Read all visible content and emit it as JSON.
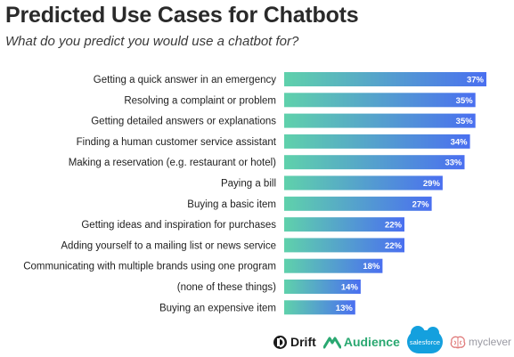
{
  "header": {
    "title": "Predicted Use Cases for Chatbots",
    "subtitle": "What do you predict you would use a chatbot for?"
  },
  "chart_data": {
    "type": "bar",
    "orientation": "horizontal",
    "categories": [
      "Getting a quick answer in an emergency",
      "Resolving a complaint or problem",
      "Getting detailed answers or explanations",
      "Finding a human customer service assistant",
      "Making a reservation (e.g. restaurant or hotel)",
      "Paying a bill",
      "Buying a basic item",
      "Getting ideas and inspiration for purchases",
      "Adding yourself to a mailing list or news service",
      "Communicating with multiple brands using one program",
      "(none of these things)",
      "Buying an expensive item"
    ],
    "values": [
      37,
      35,
      35,
      34,
      33,
      29,
      27,
      22,
      22,
      18,
      14,
      13
    ],
    "value_labels": [
      "37%",
      "35%",
      "35%",
      "34%",
      "33%",
      "29%",
      "27%",
      "22%",
      "22%",
      "18%",
      "14%",
      "13%"
    ],
    "xlim": [
      0,
      37
    ],
    "grid": false,
    "legend": "none",
    "colors": {
      "gradient_start": "#5fd1ab",
      "gradient_end": "#4a6ff0",
      "value_text": "#ffffff"
    }
  },
  "logos": {
    "drift": {
      "icon": "drift-logo-icon",
      "label": "Drift"
    },
    "audience": {
      "icon": "audience-logo-icon",
      "label": "Audience"
    },
    "salesforce": {
      "label": "salesforce"
    },
    "myclever": {
      "icon": "myclever-brain-icon",
      "label": "myclever"
    }
  }
}
